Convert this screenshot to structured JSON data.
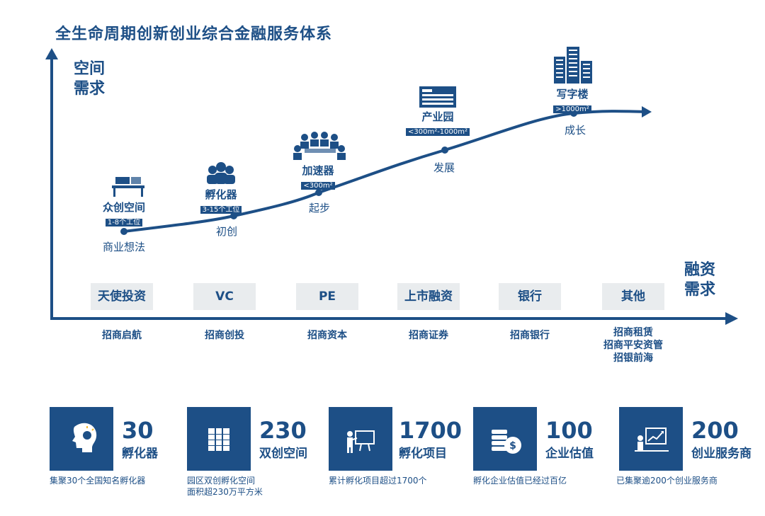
{
  "title": "全生命周期创新创业综合金融服务体系",
  "y_axis_label_line1": "空间",
  "y_axis_label_line2": "需求",
  "x_axis_label_line1": "融资",
  "x_axis_label_line2": "需求",
  "stages": [
    {
      "name": "众创空间",
      "tag": "1-8个工位",
      "phase": "商业想法"
    },
    {
      "name": "孵化器",
      "tag": "3-15个工位",
      "phase": "初创"
    },
    {
      "name": "加速器",
      "tag": "<300m²",
      "phase": "起步"
    },
    {
      "name": "产业园",
      "tag": "<300m²-1000m²",
      "phase": "发展"
    },
    {
      "name": "写字楼",
      "tag": ">1000m²",
      "phase": "成长"
    }
  ],
  "financing": [
    "天使投资",
    "VC",
    "PE",
    "上市融资",
    "银行",
    "其他"
  ],
  "partners": [
    "招商启航",
    "招商创投",
    "招商资本",
    "招商证券",
    "招商银行"
  ],
  "partners_other": [
    "招商租赁",
    "招商平安资管",
    "招银前海"
  ],
  "stats": [
    {
      "icon": "head-lightbulb-icon",
      "number": "30",
      "label": "孵化器",
      "desc1": "集聚30个全国知名孵化器",
      "desc2": ""
    },
    {
      "icon": "building-icon",
      "number": "230",
      "label": "双创空间",
      "desc1": "园区双创孵化空间",
      "desc2": "面积超230万平方米"
    },
    {
      "icon": "presentation-icon",
      "number": "1700",
      "label": "孵化项目",
      "desc1": "累计孵化项目超过1700个",
      "desc2": ""
    },
    {
      "icon": "coins-icon",
      "number": "100",
      "label": "企业估值",
      "desc1": "孵化企业估值已经过百亿",
      "desc2": ""
    },
    {
      "icon": "growth-chart-icon",
      "number": "200",
      "label": "创业服务商",
      "desc1": "已集聚逾200个创业服务商",
      "desc2": ""
    }
  ],
  "colors": {
    "primary": "#1d4f86",
    "box_bg": "#e9ecee"
  }
}
